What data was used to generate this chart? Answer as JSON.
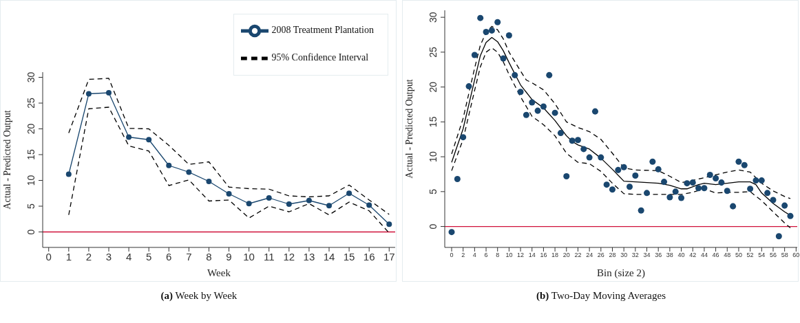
{
  "chart_data": [
    {
      "type": "line",
      "title": "(a) Week by Week",
      "xlabel": "Week",
      "ylabel": "Actual - Predicted Output",
      "xlim": [
        -0.3,
        17.3
      ],
      "xticks": [
        0,
        1,
        2,
        3,
        4,
        5,
        6,
        7,
        8,
        9,
        10,
        11,
        12,
        13,
        14,
        15,
        16,
        17
      ],
      "ylim": [
        -3,
        31
      ],
      "yticks": [
        0,
        5,
        10,
        15,
        20,
        25,
        30
      ],
      "grid": false,
      "legend": "top right",
      "ref_lines": [
        {
          "axis": "y",
          "value": 0,
          "color": "#d0103a"
        }
      ],
      "x": [
        1,
        2,
        3,
        4,
        5,
        6,
        7,
        8,
        9,
        10,
        11,
        12,
        13,
        14,
        15,
        16,
        17
      ],
      "series": [
        {
          "name": "2008 Treatment Plantation",
          "color": "#1a476f",
          "marker": "circle",
          "line_style": "solid",
          "values": [
            11.2,
            26.8,
            27.0,
            18.4,
            17.9,
            12.9,
            11.6,
            9.8,
            7.4,
            5.5,
            6.6,
            5.4,
            6.1,
            5.1,
            7.5,
            5.2,
            1.5
          ]
        },
        {
          "name": "95% Confidence Interval",
          "color": "#000000",
          "marker": "none",
          "line_style": "dashed",
          "values": [
            19.2,
            29.6,
            29.8,
            20.1,
            20.0,
            16.8,
            13.1,
            13.6,
            8.7,
            8.4,
            8.3,
            7.0,
            6.8,
            7.0,
            9.1,
            6.2,
            3.4
          ]
        },
        {
          "color": "#000000",
          "marker": "none",
          "line_style": "dashed",
          "values": [
            3.3,
            23.9,
            24.2,
            16.7,
            15.7,
            9.0,
            10.1,
            6.0,
            6.2,
            2.7,
            5.0,
            3.9,
            5.5,
            3.3,
            5.8,
            4.1,
            -0.2
          ]
        }
      ]
    },
    {
      "type": "scatter",
      "title": "(b) Two-Day Moving Averages",
      "xlabel": "Bin (size 2)",
      "ylabel": "Actual - Predicted Output",
      "xlim": [
        -1.2,
        60.2
      ],
      "xticks": [
        0,
        2,
        4,
        6,
        8,
        10,
        12,
        14,
        16,
        18,
        20,
        22,
        24,
        26,
        28,
        30,
        32,
        34,
        36,
        38,
        40,
        42,
        44,
        46,
        48,
        50,
        52,
        54,
        56,
        58,
        60
      ],
      "ylim": [
        -3,
        31
      ],
      "yticks": [
        0,
        5,
        10,
        15,
        20,
        25,
        30
      ],
      "grid": false,
      "legend": false,
      "ref_lines": [
        {
          "axis": "y",
          "value": 0,
          "color": "#d0103a"
        }
      ],
      "series": [
        {
          "color": "#1a476f",
          "marker": "circle",
          "x": [
            0,
            1,
            2,
            3,
            4,
            5,
            6,
            7,
            8,
            9,
            10,
            11,
            12,
            13,
            14,
            15,
            16,
            17,
            18,
            19,
            20,
            21,
            22,
            23,
            24,
            25,
            26,
            27,
            28,
            29,
            30,
            31,
            32,
            33,
            34,
            35,
            36,
            37,
            38,
            39,
            40,
            41,
            42,
            43,
            44,
            45,
            46,
            47,
            48,
            49,
            50,
            51,
            52,
            53,
            54,
            55,
            56,
            57,
            58,
            59
          ],
          "values": [
            -0.8,
            6.8,
            12.8,
            20.1,
            24.6,
            29.9,
            27.9,
            28.1,
            29.3,
            24.1,
            27.4,
            21.7,
            19.3,
            16.0,
            17.8,
            16.6,
            17.2,
            21.7,
            16.3,
            13.4,
            7.2,
            12.3,
            12.4,
            11.1,
            9.9,
            16.5,
            9.9,
            6.0,
            5.3,
            8.1,
            8.5,
            5.7,
            7.3,
            2.3,
            4.8,
            9.3,
            8.2,
            6.4,
            4.2,
            5.0,
            4.1,
            6.2,
            6.3,
            5.5,
            5.5,
            7.4,
            6.9,
            6.3,
            5.1,
            2.9,
            9.3,
            8.8,
            5.4,
            6.6,
            6.6,
            4.8,
            3.8,
            -1.4,
            3.0,
            1.5
          ]
        },
        {
          "type": "line",
          "color": "#000000",
          "marker": "none",
          "line_style": "solid",
          "x": [
            0,
            2,
            4,
            5,
            6,
            7,
            8,
            9,
            10,
            12,
            14,
            16,
            18,
            20,
            21,
            22,
            24,
            26,
            28,
            30,
            32,
            36,
            38,
            40,
            41,
            43,
            44,
            46,
            48,
            50,
            52,
            53,
            54,
            56,
            58,
            59
          ],
          "values": [
            9.2,
            14.0,
            21.0,
            24.5,
            26.4,
            27.1,
            26.5,
            25.2,
            23.5,
            20.3,
            18.2,
            17.0,
            15.2,
            13.0,
            12.2,
            11.7,
            11.1,
            9.8,
            8.2,
            6.5,
            6.4,
            6.2,
            5.9,
            5.4,
            5.4,
            6.0,
            6.2,
            6.0,
            6.2,
            6.4,
            6.4,
            6.0,
            4.8,
            3.3,
            2.1,
            1.6
          ]
        },
        {
          "type": "line",
          "color": "#000000",
          "marker": "none",
          "line_style": "dashed",
          "x": [
            0,
            2,
            4,
            5,
            6,
            7,
            8,
            9,
            10,
            12,
            13,
            14,
            16,
            18,
            20,
            22,
            24,
            26,
            28,
            30,
            32,
            36,
            38,
            40,
            42,
            44,
            46,
            48,
            50,
            52,
            54,
            56,
            58,
            59
          ],
          "values": [
            10.4,
            15.5,
            22.7,
            26.0,
            27.8,
            28.7,
            28.2,
            26.9,
            25.0,
            22.3,
            21.0,
            20.6,
            19.6,
            17.6,
            15.0,
            14.2,
            13.6,
            12.5,
            10.5,
            8.4,
            8.1,
            8.0,
            7.2,
            6.3,
            6.6,
            7.0,
            7.4,
            7.8,
            8.1,
            7.8,
            6.2,
            5.1,
            4.3,
            4.0
          ]
        },
        {
          "type": "line",
          "color": "#000000",
          "marker": "none",
          "line_style": "dashed",
          "x": [
            0,
            2,
            4,
            5,
            6,
            7,
            8,
            9,
            10,
            12,
            14,
            16,
            18,
            20,
            22,
            24,
            26,
            28,
            30,
            32,
            36,
            40,
            42,
            44,
            46,
            48,
            50,
            52,
            54,
            56,
            58,
            59
          ],
          "values": [
            8.0,
            12.5,
            19.5,
            22.9,
            25.0,
            25.6,
            25.0,
            23.6,
            21.8,
            18.6,
            15.8,
            14.6,
            13.0,
            10.5,
            9.2,
            9.0,
            7.9,
            6.2,
            4.7,
            4.6,
            4.6,
            4.6,
            4.9,
            5.4,
            4.8,
            4.9,
            4.9,
            5.0,
            3.7,
            2.1,
            0.5,
            -0.2
          ]
        }
      ]
    }
  ]
}
